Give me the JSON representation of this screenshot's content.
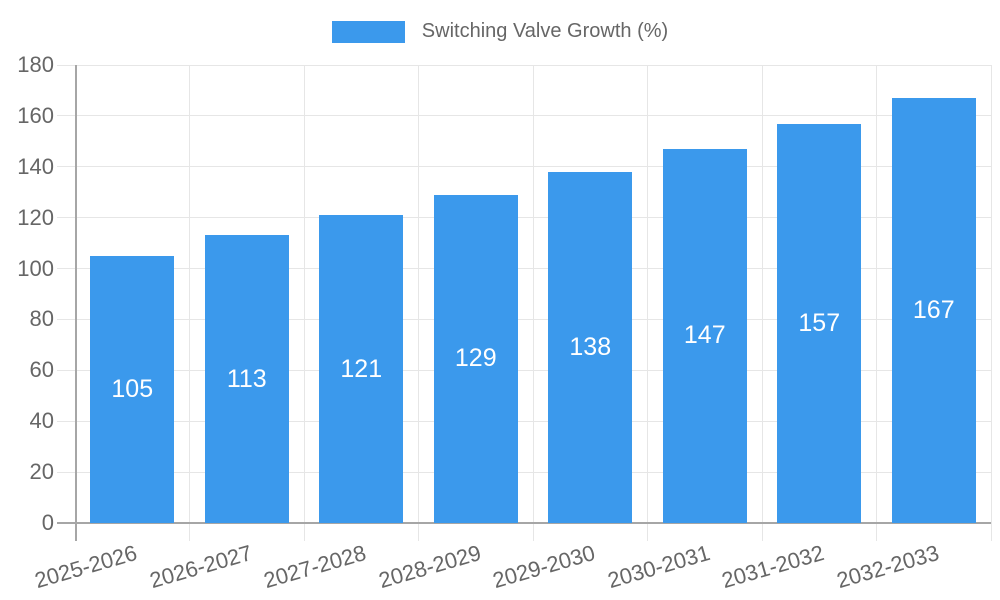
{
  "chart_data": {
    "type": "bar",
    "series_name": "Switching Valve Growth (%)",
    "categories": [
      "2025-2026",
      "2026-2027",
      "2027-2028",
      "2028-2029",
      "2029-2030",
      "2030-2031",
      "2031-2032",
      "2032-2033"
    ],
    "values": [
      105,
      113,
      121,
      129,
      138,
      147,
      157,
      167
    ],
    "yticks": [
      0,
      20,
      40,
      60,
      80,
      100,
      120,
      140,
      160,
      180
    ],
    "ylim": [
      0,
      180
    ],
    "xlabel": "",
    "ylabel": "",
    "grid": true,
    "value_labels_inside_bars": true,
    "legend_position": "top-center",
    "bar_color": "#3b99ec",
    "value_label_color": "#ffffff",
    "axis_color": "#a6a6a6",
    "grid_color": "#e6e6e6",
    "text_color": "#666666",
    "background_color": "#ffffff"
  }
}
